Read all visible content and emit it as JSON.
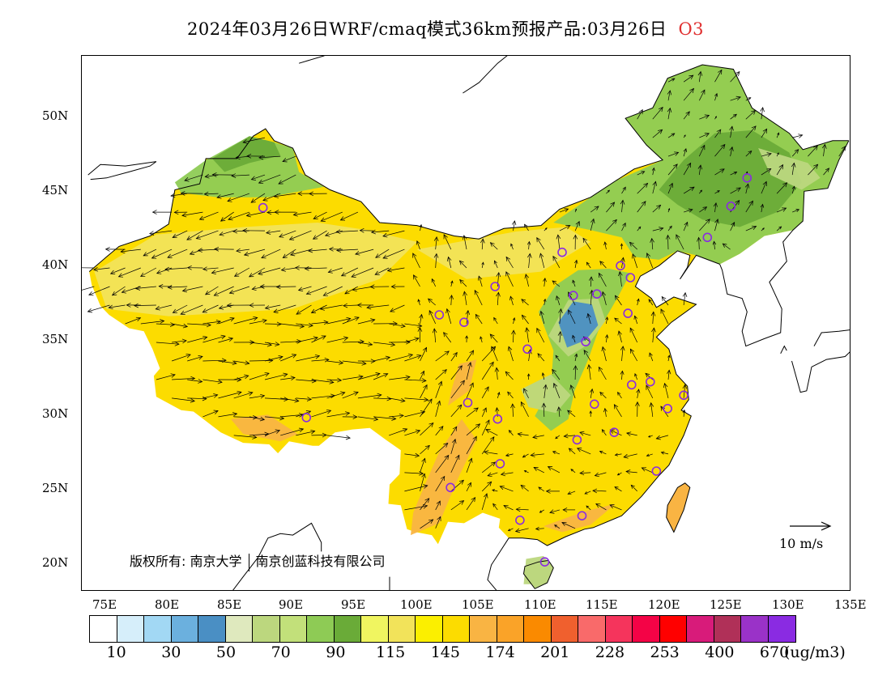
{
  "title": {
    "main": "2024年03月26日WRF/cmaq模式36km预报产品:03月26日",
    "pollutant": "O3"
  },
  "axes": {
    "lat_labels": [
      "50N",
      "45N",
      "40N",
      "35N",
      "30N",
      "25N",
      "20N"
    ],
    "lon_labels": [
      "75E",
      "80E",
      "85E",
      "90E",
      "95E",
      "100E",
      "105E",
      "110E",
      "115E",
      "120E",
      "125E",
      "130E",
      "135E"
    ],
    "lon_range": [
      73,
      135
    ],
    "lat_range": [
      18,
      54
    ]
  },
  "copyright": {
    "label": "版权所有:",
    "org1": "南京大学",
    "org2": "南京创蓝科技有限公司"
  },
  "wind_scale": {
    "label": "10 m/s"
  },
  "colorbar": {
    "colors": [
      "#ffffff",
      "#d6eefa",
      "#a2d8f4",
      "#6bb0de",
      "#4a8fc4",
      "#dfe9be",
      "#bcd77e",
      "#c2e07a",
      "#8ecb55",
      "#6aab38",
      "#f0f560",
      "#f2e35a",
      "#fbef00",
      "#fcdc00",
      "#f9b443",
      "#faa328",
      "#fa8a00",
      "#f0602e",
      "#f96a6a",
      "#f5345c",
      "#f40346",
      "#ff0000",
      "#d81b7a",
      "#b03058",
      "#9a32c8",
      "#8a2be2"
    ],
    "labels": [
      "10",
      "30",
      "50",
      "70",
      "90",
      "115",
      "145",
      "174",
      "201",
      "228",
      "253",
      "400",
      "670"
    ],
    "unit": "(ug/m3)"
  },
  "map_colors": {
    "ocean": "#ffffff",
    "base_yellow": "#fcdc00",
    "light_yellow": "#f2e35a",
    "green": "#8ecb55",
    "dark_green": "#6aab38",
    "light_green": "#bcd77e",
    "blue": "#4a8fc4",
    "orange": "#f9b443"
  },
  "stations": [
    [
      87.6,
      43.8
    ],
    [
      91.1,
      29.7
    ],
    [
      101.8,
      36.6
    ],
    [
      103.8,
      36.1
    ],
    [
      106.3,
      38.5
    ],
    [
      104.1,
      30.7
    ],
    [
      106.5,
      29.6
    ],
    [
      102.7,
      25.0
    ],
    [
      106.7,
      26.6
    ],
    [
      108.3,
      22.8
    ],
    [
      110.3,
      20.0
    ],
    [
      113.3,
      23.1
    ],
    [
      112.9,
      28.2
    ],
    [
      114.3,
      30.6
    ],
    [
      115.9,
      28.7
    ],
    [
      117.3,
      31.9
    ],
    [
      118.8,
      32.1
    ],
    [
      120.2,
      30.3
    ],
    [
      121.5,
      31.2
    ],
    [
      119.3,
      26.1
    ],
    [
      113.6,
      34.8
    ],
    [
      108.9,
      34.3
    ],
    [
      112.6,
      37.9
    ],
    [
      114.5,
      38.0
    ],
    [
      117.0,
      36.7
    ],
    [
      117.2,
      39.1
    ],
    [
      116.4,
      39.9
    ],
    [
      111.7,
      40.8
    ],
    [
      123.4,
      41.8
    ],
    [
      125.3,
      43.9
    ],
    [
      126.6,
      45.8
    ]
  ]
}
